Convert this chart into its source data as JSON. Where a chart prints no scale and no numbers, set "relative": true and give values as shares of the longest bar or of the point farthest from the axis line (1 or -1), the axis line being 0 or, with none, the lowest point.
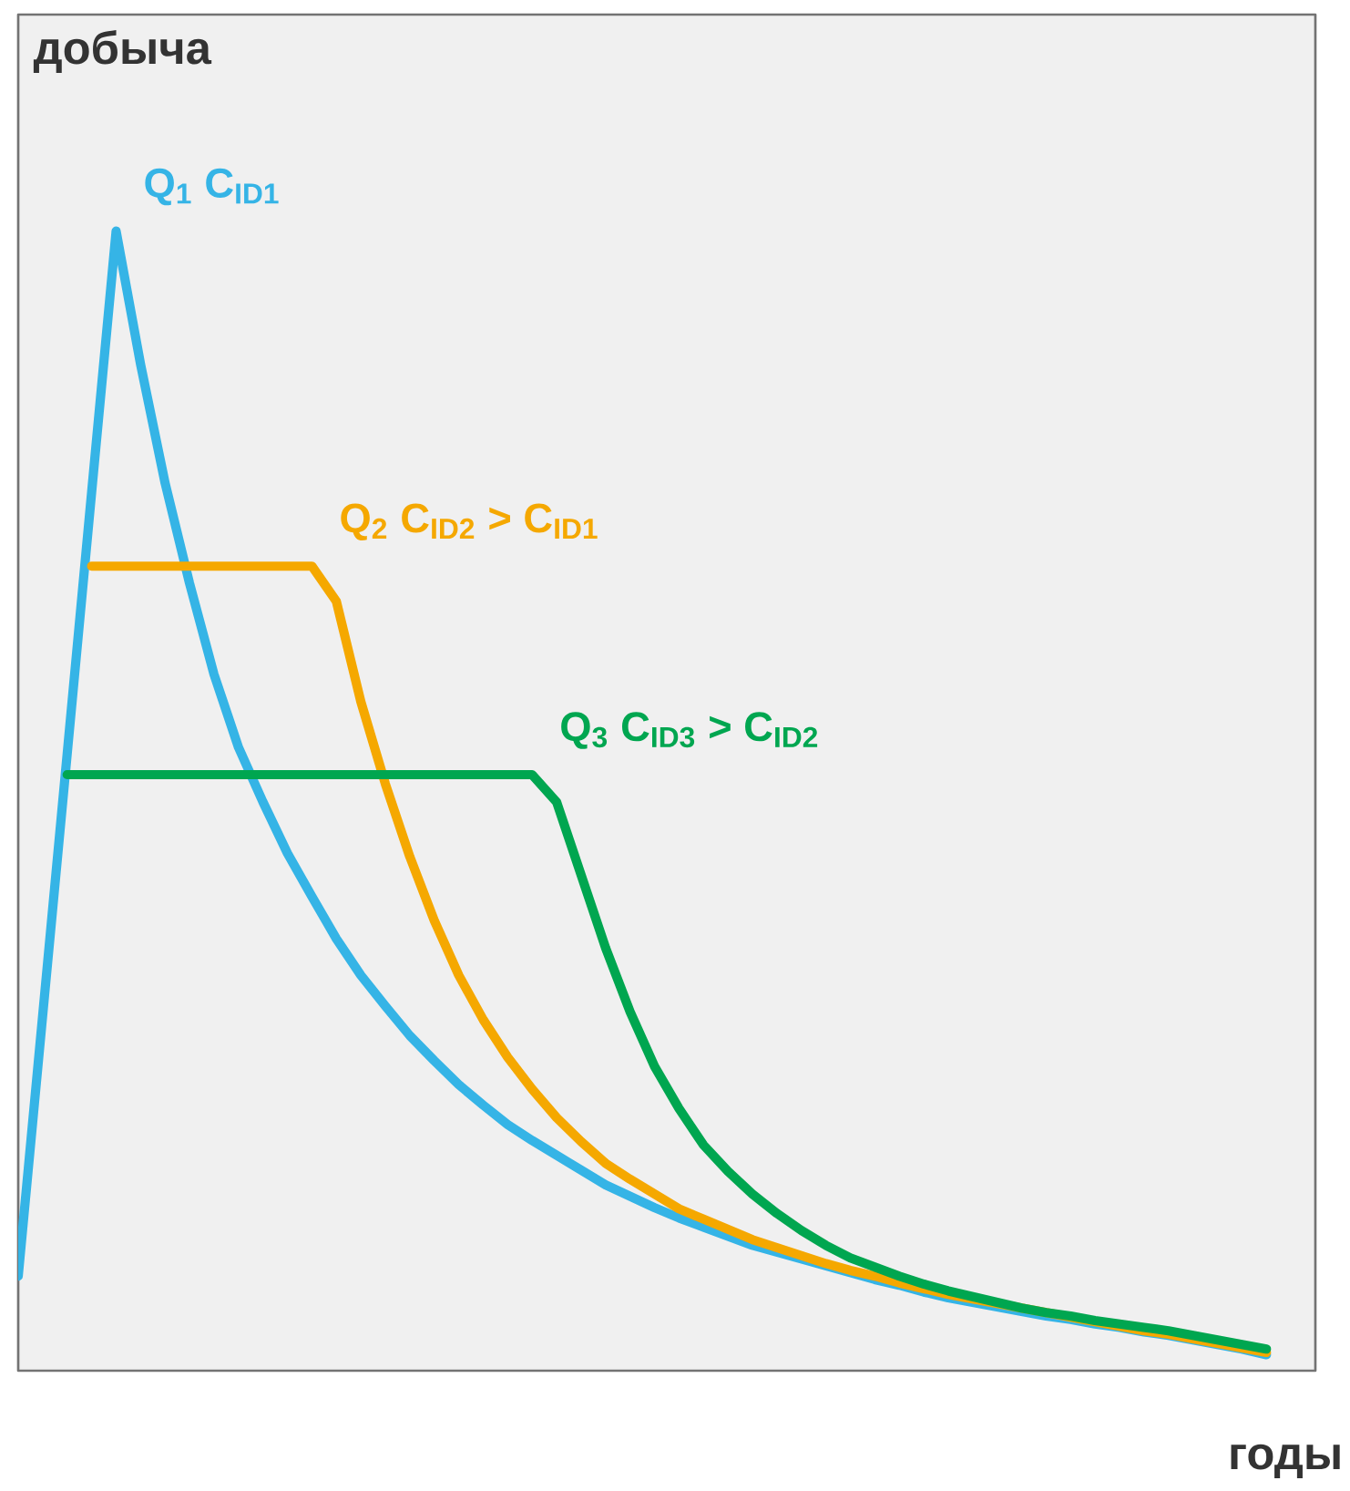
{
  "chart_data": {
    "type": "line",
    "relative": true,
    "xlabel": "годы",
    "ylabel": "добыча",
    "grid": false,
    "marker": "none",
    "line_style": "solid",
    "categories": [
      null,
      null,
      null,
      null,
      null,
      null,
      null,
      null,
      null,
      null,
      null,
      null,
      null,
      null,
      null,
      null,
      null,
      null,
      null,
      null,
      null,
      null,
      null,
      null,
      null,
      null,
      null,
      null,
      null,
      null,
      null,
      null,
      null,
      null,
      null,
      null,
      null,
      null,
      null,
      null,
      null,
      null,
      null,
      null,
      null,
      null,
      null,
      null,
      null,
      null,
      null,
      null,
      null,
      null
    ],
    "series": [
      {
        "name": "Q$_{1}$  C$_{ID1}$",
        "color": "#35b4e6",
        "values": [
          0.083,
          0.312,
          0.541,
          0.771,
          1.0,
          0.883,
          0.779,
          0.691,
          0.611,
          0.547,
          0.499,
          0.454,
          0.416,
          0.379,
          0.347,
          0.32,
          0.294,
          0.272,
          0.251,
          0.233,
          0.216,
          0.202,
          0.189,
          0.176,
          0.163,
          0.153,
          0.143,
          0.134,
          0.126,
          0.118,
          0.11,
          0.104,
          0.098,
          0.092,
          0.086,
          0.08,
          0.075,
          0.069,
          0.064,
          0.06,
          0.056,
          0.052,
          0.048,
          0.045,
          0.041,
          0.038,
          0.034,
          0.031,
          0.027,
          0.023,
          0.019,
          0.014,
          null,
          null
        ]
      },
      {
        "name": "Q$_{2}$   C$_{ID2}$ > C$_{ID1}$",
        "color": "#f5a800",
        "values": [
          null,
          null,
          null,
          0.706,
          0.706,
          0.706,
          0.706,
          0.706,
          0.706,
          0.706,
          0.706,
          0.706,
          0.706,
          0.675,
          0.587,
          0.515,
          0.451,
          0.395,
          0.347,
          0.308,
          0.275,
          0.247,
          0.222,
          0.201,
          0.182,
          0.168,
          0.155,
          0.142,
          0.133,
          0.124,
          0.115,
          0.108,
          0.101,
          0.094,
          0.088,
          0.083,
          0.077,
          0.072,
          0.067,
          0.063,
          0.059,
          0.055,
          0.051,
          0.047,
          0.043,
          0.039,
          0.035,
          0.032,
          0.028,
          0.024,
          0.02,
          0.016,
          null,
          null
        ]
      },
      {
        "name": "Q$_{3}$   C$_{ID3}$ > C$_{ID2}$",
        "color": "#00a650",
        "values": [
          null,
          null,
          0.523,
          0.523,
          0.523,
          0.523,
          0.523,
          0.523,
          0.523,
          0.523,
          0.523,
          0.523,
          0.523,
          0.523,
          0.523,
          0.523,
          0.523,
          0.523,
          0.523,
          0.523,
          0.523,
          0.523,
          0.499,
          0.435,
          0.371,
          0.315,
          0.267,
          0.23,
          0.198,
          0.175,
          0.155,
          0.138,
          0.123,
          0.11,
          0.099,
          0.091,
          0.083,
          0.076,
          0.07,
          0.065,
          0.06,
          0.055,
          0.051,
          0.048,
          0.044,
          0.041,
          0.038,
          0.035,
          0.031,
          0.027,
          0.023,
          0.019,
          null,
          null
        ]
      }
    ]
  }
}
